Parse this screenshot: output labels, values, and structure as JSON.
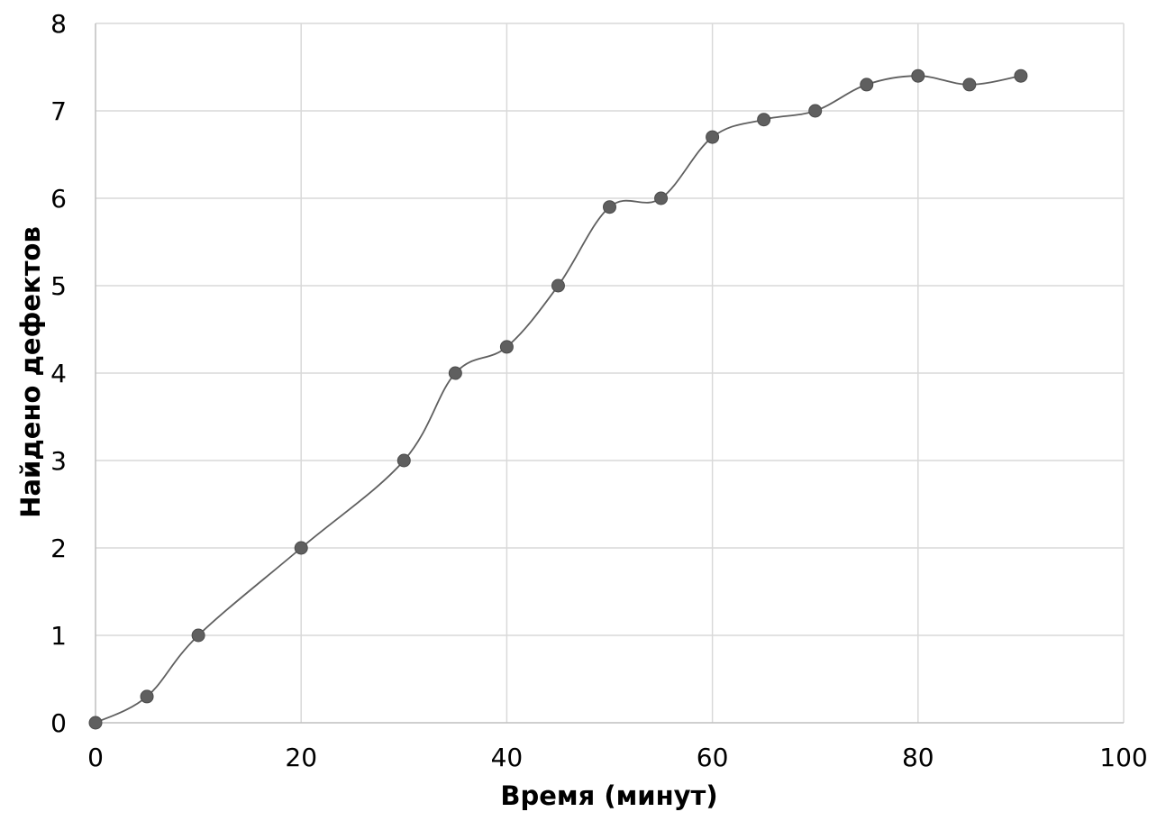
{
  "chart_data": {
    "type": "scatter",
    "title": "",
    "xlabel": "Время (минут)",
    "ylabel": "Найдено дефектов",
    "xlim": [
      0,
      100
    ],
    "ylim": [
      0,
      8
    ],
    "x_ticks": [
      0,
      20,
      40,
      60,
      80,
      100
    ],
    "y_ticks": [
      0,
      1,
      2,
      3,
      4,
      5,
      6,
      7,
      8
    ],
    "grid": true,
    "smoothed_line": true,
    "series": [
      {
        "x": [
          0,
          5,
          10,
          20,
          30,
          35,
          40,
          45,
          50,
          55,
          60,
          65,
          70,
          75,
          80,
          85,
          90
        ],
        "y": [
          0,
          0.3,
          1,
          2,
          3,
          4,
          4.3,
          5,
          5.9,
          6,
          6.7,
          6.9,
          7,
          7.3,
          7.4,
          7.3,
          7.4
        ]
      }
    ],
    "colors": {
      "marker": "#5f5f5f",
      "line": "#5f5f5f",
      "grid": "#d9d9d9",
      "axis": "#bfbfbf"
    }
  }
}
